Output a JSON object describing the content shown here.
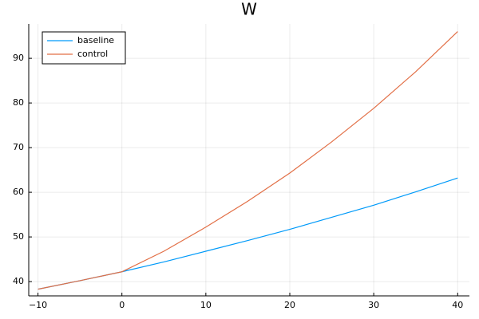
{
  "chart_data": {
    "type": "line",
    "title": "W",
    "x": [
      -10,
      -5,
      0,
      5,
      10,
      15,
      20,
      25,
      30,
      35,
      40
    ],
    "series": [
      {
        "name": "baseline",
        "color": "#009af9",
        "values": [
          38.3,
          40.2,
          42.2,
          44.4,
          46.8,
          49.2,
          51.7,
          54.4,
          57.1,
          60.1,
          63.2
        ]
      },
      {
        "name": "control",
        "color": "#e26f46",
        "values": [
          38.3,
          40.2,
          42.2,
          46.8,
          52.2,
          58.0,
          64.3,
          71.3,
          78.8,
          87.0,
          96.0
        ]
      }
    ],
    "xlim": [
      -11.1,
      41.4
    ],
    "xticks": [
      {
        "value": -10,
        "label": "−10"
      },
      0,
      10,
      20,
      30,
      40
    ],
    "ylim": [
      36.8,
      97.7
    ],
    "yticks": [
      40,
      50,
      60,
      70,
      80,
      90
    ],
    "grid": true,
    "legend": "top-left"
  }
}
